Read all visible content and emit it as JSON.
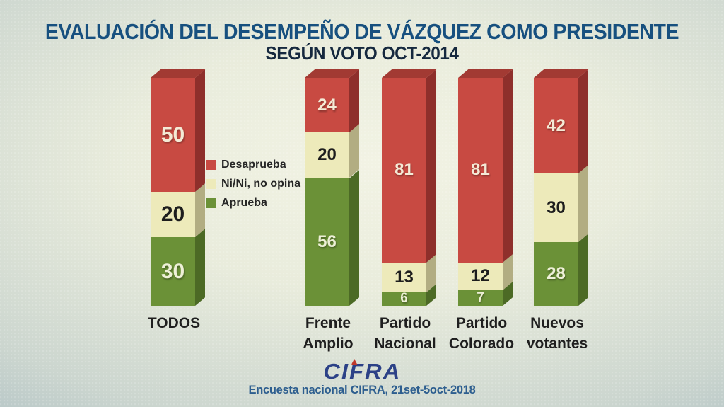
{
  "title": "EVALUACIÓN DEL DESEMPEÑO DE VÁZQUEZ COMO PRESIDENTE",
  "subtitle": "SEGÚN VOTO OCT-2014",
  "chart_data": {
    "type": "bar",
    "stacked": true,
    "unit": "percent",
    "title": "EVALUACIÓN DEL DESEMPEÑO DE VÁZQUEZ COMO PRESIDENTE",
    "subtitle": "SEGÚN VOTO OCT-2014",
    "categories": [
      "TODOS",
      "Frente Amplio",
      "Partido Nacional",
      "Partido Colorado",
      "Nuevos votantes"
    ],
    "series": [
      {
        "name": "Desaprueba",
        "color": "#c84a42",
        "side_color": "#8e2f2b",
        "top_color": "#a23a33",
        "label_color": "#f4ead6",
        "values": [
          50,
          24,
          81,
          81,
          42
        ]
      },
      {
        "name": "Ni/Ni, no opina",
        "color": "#edeaba",
        "side_color": "#b2ad82",
        "top_color": "#d6d2a0",
        "label_color": "#1d1d1d",
        "values": [
          20,
          20,
          13,
          12,
          30
        ]
      },
      {
        "name": "Aprueba",
        "color": "#6b9137",
        "side_color": "#4c6a25",
        "top_color": "#557427",
        "label_color": "#eef0d8",
        "values": [
          30,
          56,
          6,
          7,
          28
        ]
      }
    ],
    "stack_order_bottom_to_top": [
      "Aprueba",
      "Ni/Ni, no opina",
      "Desaprueba"
    ],
    "ylim": [
      0,
      100
    ],
    "grid": false,
    "legend_position": "middle-left"
  },
  "footer": {
    "logo_text": "CIFRA",
    "caption": "Encuesta nacional CIFRA, 21set-5oct-2018"
  },
  "colors": {
    "title": "#17507f",
    "subtitle": "#16293f",
    "category_label": "#1f1f1f",
    "legend_text": "#262626",
    "footer_text": "#2d5e8f",
    "logo_blue": "#2c4187",
    "logo_accent": "#c0392b",
    "background_center": "#f2f3e4",
    "background_edge": "#93abb6"
  }
}
